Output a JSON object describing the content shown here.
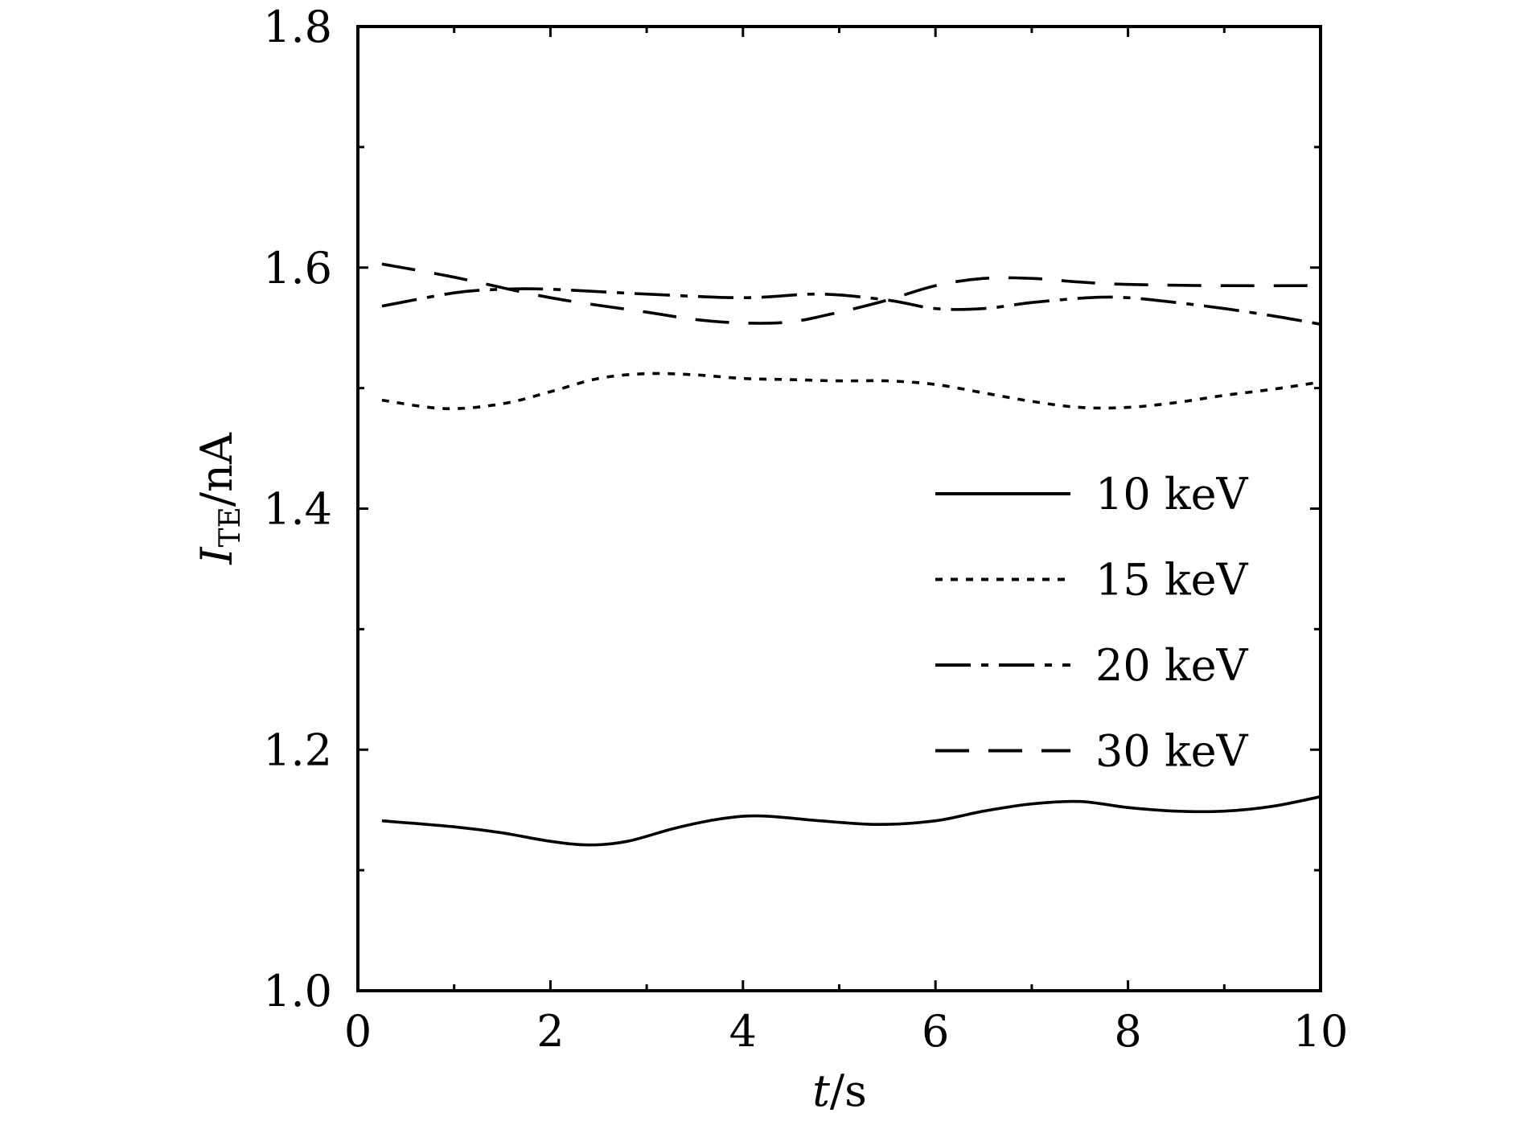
{
  "chart_data": {
    "type": "line",
    "title": "",
    "xlabel": {
      "var": "t",
      "unit": "/s"
    },
    "ylabel": {
      "var": "I",
      "sub": "TE",
      "unit": "/nA"
    },
    "xlim": [
      0,
      10
    ],
    "ylim": [
      1.0,
      1.8
    ],
    "x_ticks": [
      "0",
      "2",
      "4",
      "6",
      "8",
      "10"
    ],
    "x_minor_ticks": [
      1,
      3,
      5,
      7,
      9
    ],
    "y_ticks": [
      "1.0",
      "1.2",
      "1.4",
      "1.6",
      "1.8"
    ],
    "y_minor_ticks": [
      1.1,
      1.3,
      1.5,
      1.7
    ],
    "grid": false,
    "legend_position": "right",
    "series": [
      {
        "name": "10 keV",
        "style": "solid",
        "points": [
          [
            0.25,
            1.141
          ],
          [
            1.0,
            1.136
          ],
          [
            1.5,
            1.131
          ],
          [
            2.0,
            1.124
          ],
          [
            2.4,
            1.121
          ],
          [
            2.8,
            1.124
          ],
          [
            3.3,
            1.135
          ],
          [
            3.8,
            1.143
          ],
          [
            4.2,
            1.145
          ],
          [
            4.8,
            1.141
          ],
          [
            5.4,
            1.138
          ],
          [
            6.0,
            1.141
          ],
          [
            6.5,
            1.149
          ],
          [
            7.0,
            1.155
          ],
          [
            7.5,
            1.157
          ],
          [
            8.0,
            1.152
          ],
          [
            8.5,
            1.149
          ],
          [
            9.0,
            1.149
          ],
          [
            9.5,
            1.153
          ],
          [
            10.0,
            1.161
          ]
        ]
      },
      {
        "name": "15 keV",
        "style": "dotted",
        "points": [
          [
            0.25,
            1.49
          ],
          [
            0.9,
            1.483
          ],
          [
            1.5,
            1.487
          ],
          [
            2.0,
            1.497
          ],
          [
            2.5,
            1.508
          ],
          [
            3.0,
            1.512
          ],
          [
            3.5,
            1.511
          ],
          [
            4.0,
            1.508
          ],
          [
            4.5,
            1.507
          ],
          [
            5.0,
            1.506
          ],
          [
            5.5,
            1.506
          ],
          [
            6.0,
            1.503
          ],
          [
            6.5,
            1.496
          ],
          [
            7.0,
            1.489
          ],
          [
            7.5,
            1.484
          ],
          [
            8.0,
            1.484
          ],
          [
            8.5,
            1.488
          ],
          [
            9.0,
            1.494
          ],
          [
            9.5,
            1.499
          ],
          [
            10.0,
            1.505
          ]
        ]
      },
      {
        "name": "20 keV",
        "style": "dashdot",
        "points": [
          [
            0.25,
            1.568
          ],
          [
            1.0,
            1.579
          ],
          [
            1.5,
            1.582
          ],
          [
            2.0,
            1.582
          ],
          [
            3.0,
            1.578
          ],
          [
            4.0,
            1.575
          ],
          [
            4.8,
            1.578
          ],
          [
            5.5,
            1.573
          ],
          [
            6.0,
            1.566
          ],
          [
            6.5,
            1.566
          ],
          [
            7.0,
            1.571
          ],
          [
            7.6,
            1.575
          ],
          [
            8.0,
            1.575
          ],
          [
            8.5,
            1.571
          ],
          [
            9.0,
            1.566
          ],
          [
            9.5,
            1.56
          ],
          [
            10.0,
            1.553
          ]
        ]
      },
      {
        "name": "30 keV",
        "style": "dashed",
        "points": [
          [
            0.25,
            1.603
          ],
          [
            1.0,
            1.592
          ],
          [
            2.0,
            1.575
          ],
          [
            3.0,
            1.563
          ],
          [
            3.5,
            1.557
          ],
          [
            4.0,
            1.554
          ],
          [
            4.5,
            1.555
          ],
          [
            5.0,
            1.563
          ],
          [
            5.5,
            1.573
          ],
          [
            6.0,
            1.585
          ],
          [
            6.5,
            1.591
          ],
          [
            7.0,
            1.591
          ],
          [
            7.5,
            1.588
          ],
          [
            8.0,
            1.586
          ],
          [
            9.0,
            1.585
          ],
          [
            10.0,
            1.585
          ]
        ]
      }
    ]
  }
}
